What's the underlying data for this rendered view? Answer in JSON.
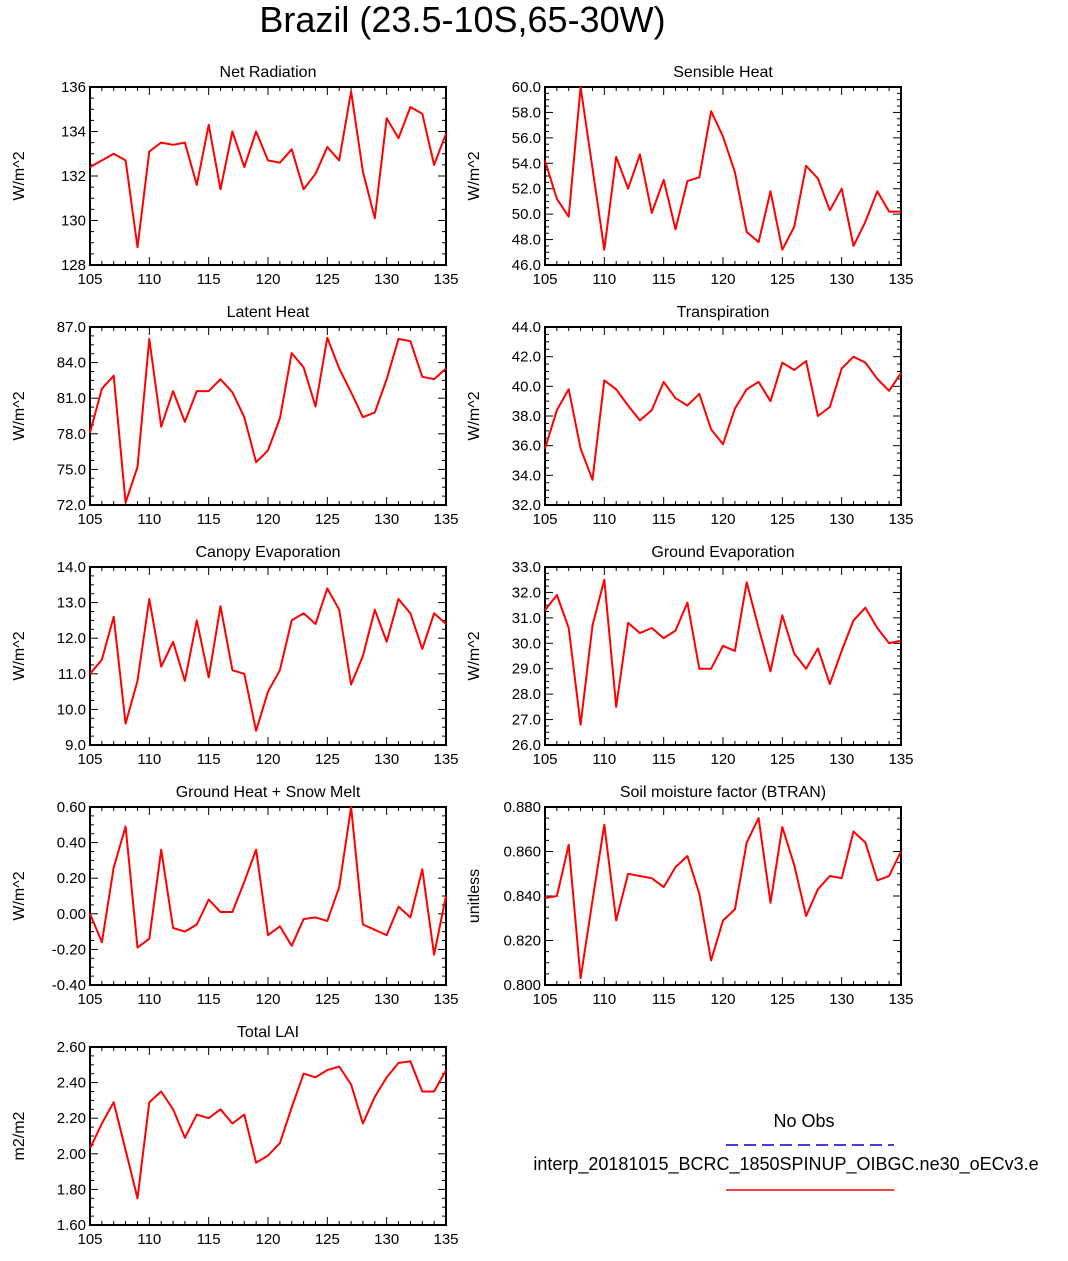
{
  "title": "Brazil (23.5-10S,65-30W)",
  "legend": {
    "obs_label": "No Obs",
    "obs_color": "#0000cc",
    "model_label": "interp_20181015_BCRC_1850SPINUP_OIBGC.ne30_oECv3.e",
    "model_color": "#ff0000"
  },
  "chart_data": [
    {
      "type": "line",
      "title": "Net Radiation",
      "ylabel": "W/m^2",
      "xlim": [
        105,
        135
      ],
      "ylim": [
        128,
        136
      ],
      "xticks": [
        "105",
        "110",
        "115",
        "120",
        "125",
        "130",
        "135"
      ],
      "yticks": [
        "128",
        "130",
        "132",
        "134",
        "136"
      ],
      "x": [
        105,
        106,
        107,
        108,
        109,
        110,
        111,
        112,
        113,
        114,
        115,
        116,
        117,
        118,
        119,
        120,
        121,
        122,
        123,
        124,
        125,
        126,
        127,
        128,
        129,
        130,
        131,
        132,
        133,
        134,
        135
      ],
      "series": [
        {
          "values": [
            132.4,
            132.7,
            133.0,
            132.7,
            128.8,
            133.1,
            133.5,
            133.4,
            133.5,
            131.6,
            134.3,
            131.4,
            134.0,
            132.4,
            134.0,
            132.7,
            132.6,
            133.2,
            131.4,
            132.1,
            133.3,
            132.7,
            135.8,
            132.2,
            130.1,
            134.6,
            133.7,
            135.1,
            134.8,
            132.5,
            133.9
          ]
        }
      ]
    },
    {
      "type": "line",
      "title": "Sensible Heat",
      "ylabel": "W/m^2",
      "xlim": [
        105,
        135
      ],
      "ylim": [
        46.0,
        60.0
      ],
      "xticks": [
        "105",
        "110",
        "115",
        "120",
        "125",
        "130",
        "135"
      ],
      "yticks": [
        "46.0",
        "48.0",
        "50.0",
        "52.0",
        "54.0",
        "56.0",
        "58.0",
        "60.0"
      ],
      "x": [
        105,
        106,
        107,
        108,
        109,
        110,
        111,
        112,
        113,
        114,
        115,
        116,
        117,
        118,
        119,
        120,
        121,
        122,
        123,
        124,
        125,
        126,
        127,
        128,
        129,
        130,
        131,
        132,
        133,
        134,
        135
      ],
      "series": [
        {
          "values": [
            54.2,
            51.2,
            49.8,
            60.0,
            53.6,
            47.2,
            54.5,
            52.0,
            54.7,
            50.1,
            52.7,
            48.8,
            52.6,
            52.9,
            58.1,
            56.1,
            53.3,
            48.6,
            47.8,
            51.8,
            47.2,
            49.0,
            53.8,
            52.8,
            50.3,
            52.0,
            47.5,
            49.4,
            51.8,
            50.2,
            50.2
          ]
        }
      ]
    },
    {
      "type": "line",
      "title": "Latent Heat",
      "ylabel": "W/m^2",
      "xlim": [
        105,
        135
      ],
      "ylim": [
        72.0,
        87.0
      ],
      "xticks": [
        "105",
        "110",
        "115",
        "120",
        "125",
        "130",
        "135"
      ],
      "yticks": [
        "72.0",
        "75.0",
        "78.0",
        "81.0",
        "84.0",
        "87.0"
      ],
      "x": [
        105,
        106,
        107,
        108,
        109,
        110,
        111,
        112,
        113,
        114,
        115,
        116,
        117,
        118,
        119,
        120,
        121,
        122,
        123,
        124,
        125,
        126,
        127,
        128,
        129,
        130,
        131,
        132,
        133,
        134,
        135
      ],
      "series": [
        {
          "values": [
            78.1,
            81.8,
            82.9,
            72.2,
            75.2,
            86.0,
            78.6,
            81.6,
            79.0,
            81.6,
            81.6,
            82.6,
            81.5,
            79.4,
            75.6,
            76.6,
            79.3,
            84.8,
            83.6,
            80.3,
            86.1,
            83.5,
            81.5,
            79.4,
            79.8,
            82.6,
            86.0,
            85.8,
            82.8,
            82.6,
            83.5
          ]
        }
      ]
    },
    {
      "type": "line",
      "title": "Transpiration",
      "ylabel": "W/m^2",
      "xlim": [
        105,
        135
      ],
      "ylim": [
        32.0,
        44.0
      ],
      "xticks": [
        "105",
        "110",
        "115",
        "120",
        "125",
        "130",
        "135"
      ],
      "yticks": [
        "32.0",
        "34.0",
        "36.0",
        "38.0",
        "40.0",
        "42.0",
        "44.0"
      ],
      "x": [
        105,
        106,
        107,
        108,
        109,
        110,
        111,
        112,
        113,
        114,
        115,
        116,
        117,
        118,
        119,
        120,
        121,
        122,
        123,
        124,
        125,
        126,
        127,
        128,
        129,
        130,
        131,
        132,
        133,
        134,
        135
      ],
      "series": [
        {
          "values": [
            35.8,
            38.4,
            39.8,
            35.8,
            33.7,
            40.4,
            39.8,
            38.7,
            37.7,
            38.4,
            40.3,
            39.2,
            38.7,
            39.5,
            37.1,
            36.1,
            38.5,
            39.8,
            40.3,
            39.0,
            41.6,
            41.1,
            41.7,
            38.0,
            38.6,
            41.2,
            42.0,
            41.6,
            40.5,
            39.7,
            40.9
          ]
        }
      ]
    },
    {
      "type": "line",
      "title": "Canopy Evaporation",
      "ylabel": "W/m^2",
      "xlim": [
        105,
        135
      ],
      "ylim": [
        9.0,
        14.0
      ],
      "xticks": [
        "105",
        "110",
        "115",
        "120",
        "125",
        "130",
        "135"
      ],
      "yticks": [
        "9.0",
        "10.0",
        "11.0",
        "12.0",
        "13.0",
        "14.0"
      ],
      "x": [
        105,
        106,
        107,
        108,
        109,
        110,
        111,
        112,
        113,
        114,
        115,
        116,
        117,
        118,
        119,
        120,
        121,
        122,
        123,
        124,
        125,
        126,
        127,
        128,
        129,
        130,
        131,
        132,
        133,
        134,
        135
      ],
      "series": [
        {
          "values": [
            11.0,
            11.4,
            12.6,
            9.6,
            10.8,
            13.1,
            11.2,
            11.9,
            10.8,
            12.5,
            10.9,
            12.9,
            11.1,
            11.0,
            9.4,
            10.5,
            11.1,
            12.5,
            12.7,
            12.4,
            13.4,
            12.8,
            10.7,
            11.5,
            12.8,
            11.9,
            13.1,
            12.7,
            11.7,
            12.7,
            12.4
          ]
        }
      ]
    },
    {
      "type": "line",
      "title": "Ground Evaporation",
      "ylabel": "W/m^2",
      "xlim": [
        105,
        135
      ],
      "ylim": [
        26.0,
        33.0
      ],
      "xticks": [
        "105",
        "110",
        "115",
        "120",
        "125",
        "130",
        "135"
      ],
      "yticks": [
        "26.0",
        "27.0",
        "28.0",
        "29.0",
        "30.0",
        "31.0",
        "32.0",
        "33.0"
      ],
      "x": [
        105,
        106,
        107,
        108,
        109,
        110,
        111,
        112,
        113,
        114,
        115,
        116,
        117,
        118,
        119,
        120,
        121,
        122,
        123,
        124,
        125,
        126,
        127,
        128,
        129,
        130,
        131,
        132,
        133,
        134,
        135
      ],
      "series": [
        {
          "values": [
            31.3,
            31.9,
            30.6,
            26.8,
            30.7,
            32.5,
            27.5,
            30.8,
            30.4,
            30.6,
            30.2,
            30.5,
            31.6,
            29.0,
            29.0,
            29.9,
            29.7,
            32.4,
            30.6,
            28.9,
            31.1,
            29.6,
            29.0,
            29.8,
            28.4,
            29.7,
            30.9,
            31.4,
            30.6,
            30.0,
            30.1
          ]
        }
      ]
    },
    {
      "type": "line",
      "title": "Ground Heat + Snow Melt",
      "ylabel": "W/m^2",
      "xlim": [
        105,
        135
      ],
      "ylim": [
        -0.4,
        0.6
      ],
      "xticks": [
        "105",
        "110",
        "115",
        "120",
        "125",
        "130",
        "135"
      ],
      "yticks": [
        "-0.40",
        "-0.20",
        "0.00",
        "0.20",
        "0.40",
        "0.60"
      ],
      "x": [
        105,
        106,
        107,
        108,
        109,
        110,
        111,
        112,
        113,
        114,
        115,
        116,
        117,
        118,
        119,
        120,
        121,
        122,
        123,
        124,
        125,
        126,
        127,
        128,
        129,
        130,
        131,
        132,
        133,
        134,
        135
      ],
      "series": [
        {
          "values": [
            0.0,
            -0.16,
            0.26,
            0.49,
            -0.19,
            -0.14,
            0.36,
            -0.08,
            -0.1,
            -0.06,
            0.08,
            0.01,
            0.01,
            0.18,
            0.36,
            -0.12,
            -0.07,
            -0.18,
            -0.03,
            -0.02,
            -0.04,
            0.15,
            0.6,
            -0.06,
            -0.09,
            -0.12,
            0.04,
            -0.02,
            0.25,
            -0.23,
            0.1
          ]
        }
      ]
    },
    {
      "type": "line",
      "title": "Soil moisture factor (BTRAN)",
      "ylabel": "unitless",
      "xlim": [
        105,
        135
      ],
      "ylim": [
        0.8,
        0.88
      ],
      "xticks": [
        "105",
        "110",
        "115",
        "120",
        "125",
        "130",
        "135"
      ],
      "yticks": [
        "0.800",
        "0.820",
        "0.840",
        "0.860",
        "0.880"
      ],
      "x": [
        105,
        106,
        107,
        108,
        109,
        110,
        111,
        112,
        113,
        114,
        115,
        116,
        117,
        118,
        119,
        120,
        121,
        122,
        123,
        124,
        125,
        126,
        127,
        128,
        129,
        130,
        131,
        132,
        133,
        134,
        135
      ],
      "series": [
        {
          "values": [
            0.839,
            0.84,
            0.863,
            0.803,
            0.838,
            0.872,
            0.829,
            0.85,
            0.849,
            0.848,
            0.844,
            0.853,
            0.858,
            0.841,
            0.811,
            0.829,
            0.834,
            0.864,
            0.875,
            0.837,
            0.871,
            0.854,
            0.831,
            0.843,
            0.849,
            0.848,
            0.869,
            0.864,
            0.847,
            0.849,
            0.86
          ]
        }
      ]
    },
    {
      "type": "line",
      "title": "Total LAI",
      "ylabel": "m2/m2",
      "xlim": [
        105,
        135
      ],
      "ylim": [
        1.6,
        2.6
      ],
      "xticks": [
        "105",
        "110",
        "115",
        "120",
        "125",
        "130",
        "135"
      ],
      "yticks": [
        "1.60",
        "1.80",
        "2.00",
        "2.20",
        "2.40",
        "2.60"
      ],
      "x": [
        105,
        106,
        107,
        108,
        109,
        110,
        111,
        112,
        113,
        114,
        115,
        116,
        117,
        118,
        119,
        120,
        121,
        122,
        123,
        124,
        125,
        126,
        127,
        128,
        129,
        130,
        131,
        132,
        133,
        134,
        135
      ],
      "series": [
        {
          "values": [
            2.03,
            2.17,
            2.29,
            2.02,
            1.75,
            2.29,
            2.35,
            2.25,
            2.09,
            2.22,
            2.2,
            2.25,
            2.17,
            2.22,
            1.95,
            1.99,
            2.06,
            2.26,
            2.45,
            2.43,
            2.47,
            2.49,
            2.39,
            2.17,
            2.32,
            2.43,
            2.51,
            2.52,
            2.35,
            2.35,
            2.47
          ]
        }
      ]
    }
  ]
}
